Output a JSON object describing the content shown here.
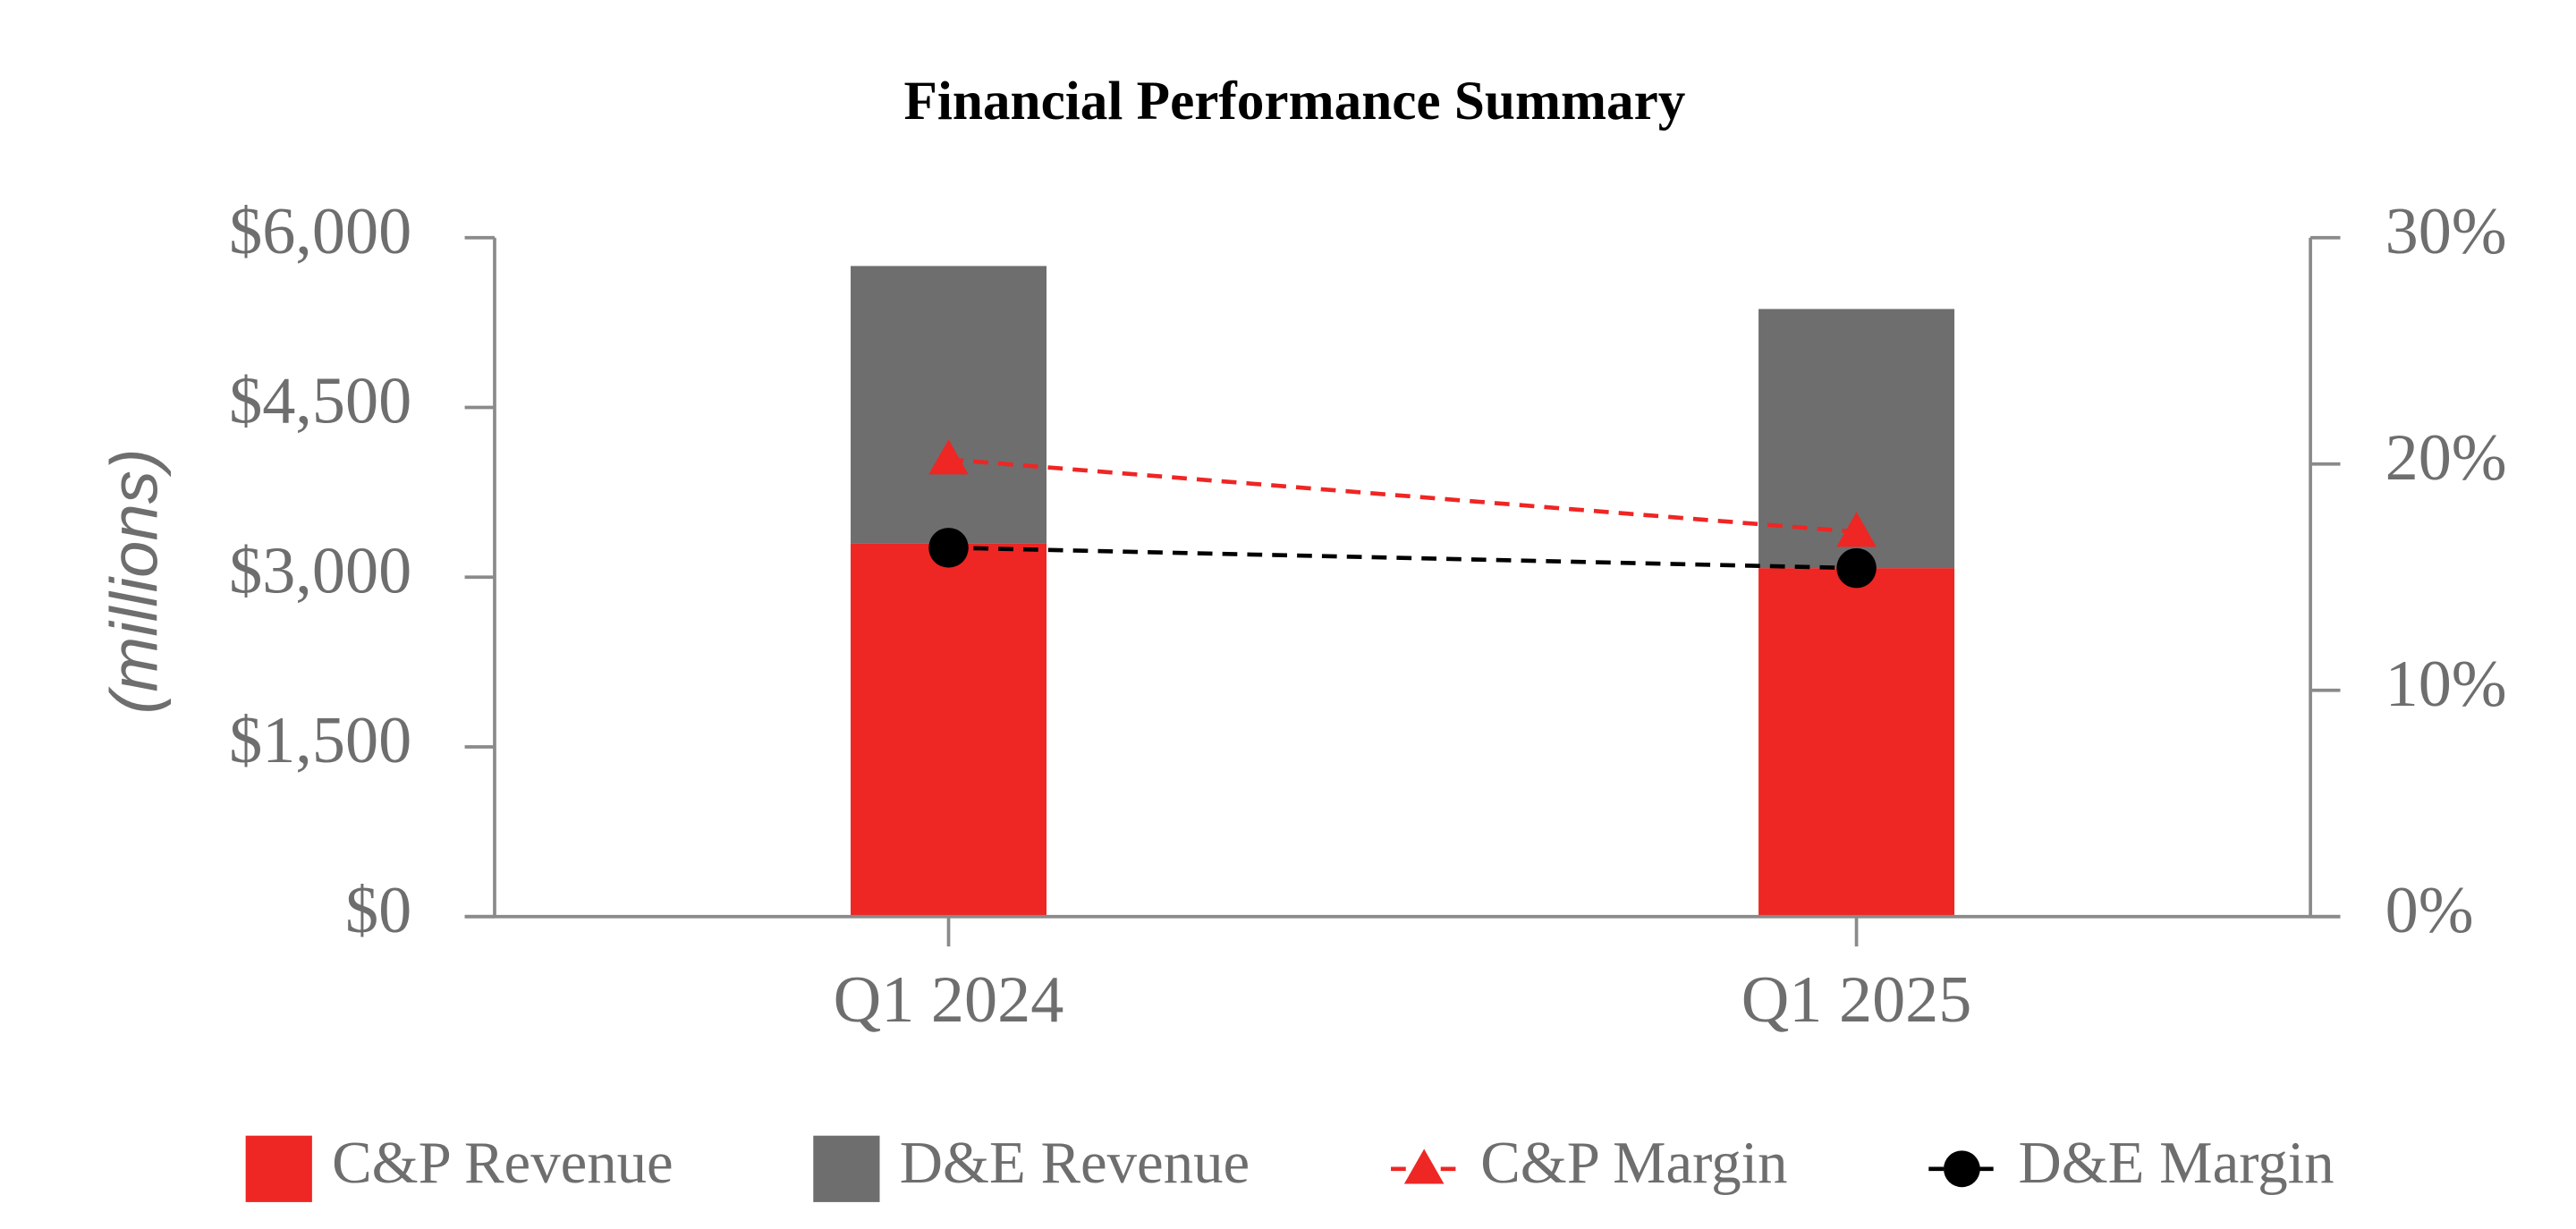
{
  "chart_data": {
    "type": "bar",
    "stacked": true,
    "title": "Financial Performance Summary",
    "y_axis_label": "(millions)",
    "categories": [
      "Q1 2024",
      "Q1 2025"
    ],
    "series": [
      {
        "name": "C&P Revenue",
        "type": "bar",
        "color": "#ee2624",
        "values": [
          3300,
          3080
        ]
      },
      {
        "name": "D&E Revenue",
        "type": "bar",
        "color": "#6e6e6e",
        "values": [
          2450,
          2290
        ]
      },
      {
        "name": "C&P Margin",
        "type": "line",
        "axis": "y2",
        "marker": "triangle",
        "dashed": true,
        "color": "#ee2624",
        "values": [
          20.2,
          17.0
        ]
      },
      {
        "name": "D&E Margin",
        "type": "line",
        "axis": "y2",
        "marker": "circle",
        "dashed": true,
        "color": "#000000",
        "values": [
          16.3,
          15.4
        ]
      }
    ],
    "ylim": [
      0,
      6000
    ],
    "yticks": [
      {
        "value": 0,
        "label": "$0"
      },
      {
        "value": 1500,
        "label": "$1,500"
      },
      {
        "value": 3000,
        "label": "$3,000"
      },
      {
        "value": 4500,
        "label": "$4,500"
      },
      {
        "value": 6000,
        "label": "$6,000"
      }
    ],
    "y2lim": [
      0,
      30
    ],
    "y2ticks": [
      {
        "value": 0,
        "label": "0%"
      },
      {
        "value": 10,
        "label": "10%"
      },
      {
        "value": 20,
        "label": "20%"
      },
      {
        "value": 30,
        "label": "30%"
      }
    ],
    "grid": false,
    "legend": "bottom"
  }
}
